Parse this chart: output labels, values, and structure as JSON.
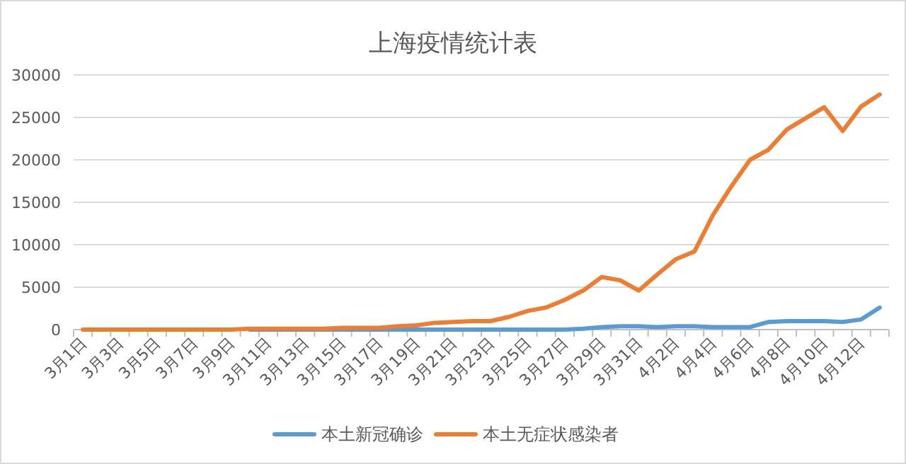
{
  "chart_data": {
    "type": "line",
    "title": "上海疫情统计表",
    "categories": [
      "3月1日",
      null,
      "3月3日",
      null,
      "3月5日",
      null,
      "3月7日",
      null,
      "3月9日",
      null,
      "3月11日",
      null,
      "3月13日",
      null,
      "3月15日",
      null,
      "3月17日",
      null,
      "3月19日",
      null,
      "3月21日",
      null,
      "3月23日",
      null,
      "3月25日",
      null,
      "3月27日",
      null,
      "3月29日",
      null,
      "3月31日",
      null,
      "4月2日",
      null,
      "4月4日",
      null,
      "4月6日",
      null,
      "4月8日",
      null,
      "4月10日",
      null,
      "4月12日",
      null
    ],
    "series": [
      {
        "name": "本土新冠确诊",
        "color": "#5b9bd5",
        "values": [
          null,
          null,
          null,
          null,
          null,
          null,
          null,
          null,
          null,
          0,
          0,
          0,
          0,
          0,
          0,
          0,
          0,
          0,
          0,
          0,
          0,
          0,
          0,
          0,
          0,
          0,
          0,
          100,
          300,
          400,
          400,
          300,
          400,
          400,
          300,
          300,
          300,
          900,
          1000,
          1000,
          1000,
          900,
          1200,
          2600
        ]
      },
      {
        "name": "本土无症状感染者",
        "color": "#ed7d31",
        "values": [
          0,
          0,
          0,
          0,
          0,
          0,
          0,
          0,
          0,
          100,
          100,
          100,
          100,
          100,
          200,
          200,
          200,
          400,
          500,
          800,
          900,
          1000,
          1000,
          1500,
          2200,
          2600,
          3500,
          4600,
          6200,
          5800,
          4600,
          6500,
          8300,
          9200,
          13500,
          16900,
          20000,
          21200,
          23600,
          24900,
          26200,
          23400,
          26300,
          27700
        ]
      }
    ],
    "ylim": [
      0,
      30000
    ],
    "yticks": [
      0,
      5000,
      10000,
      15000,
      20000,
      25000,
      30000
    ],
    "grid": "y",
    "legend": "bottom",
    "marker": "none",
    "line_style": "solid"
  }
}
